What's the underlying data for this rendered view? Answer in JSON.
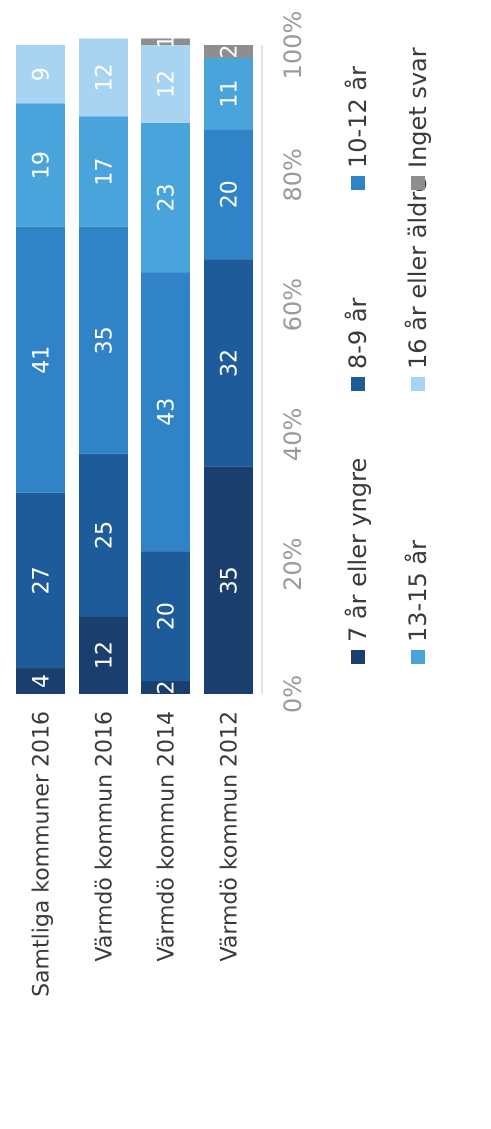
{
  "chart_data": {
    "type": "bar",
    "orientation": "horizontal-stacked-100",
    "title": "",
    "xlabel": "",
    "ylabel": "",
    "categories": [
      "Samtliga kommuner 2016",
      "Värmdö kommun 2016",
      "Värmdö kommun 2014",
      "Värmdö kommun 2012"
    ],
    "xlim": [
      0,
      100
    ],
    "x_ticks": [
      "0%",
      "20%",
      "40%",
      "60%",
      "80%",
      "100%"
    ],
    "series": [
      {
        "name": "7 år eller yngre",
        "color": "#1a3f6e",
        "values": [
          4,
          12,
          2,
          35
        ],
        "labels": [
          "4",
          "12",
          "2",
          "35"
        ]
      },
      {
        "name": "8-9 år",
        "color": "#1d5b9a",
        "values": [
          27,
          25,
          20,
          32
        ],
        "labels": [
          "27",
          "25",
          "20",
          "32"
        ]
      },
      {
        "name": "10-12 år",
        "color": "#2f83c6",
        "values": [
          41,
          35,
          43,
          20
        ],
        "labels": [
          "41",
          "35",
          "43",
          "20"
        ]
      },
      {
        "name": "13-15 år",
        "color": "#4aa4dc",
        "values": [
          19,
          17,
          23,
          11
        ],
        "labels": [
          "19",
          "17",
          "23",
          "11"
        ]
      },
      {
        "name": "16 år eller äldre",
        "color": "#a8d4f2",
        "values": [
          9,
          12,
          12,
          0
        ],
        "labels": [
          "9",
          "12",
          "12",
          ""
        ]
      },
      {
        "name": "Inget svar",
        "color": "#8e8e8e",
        "values": [
          0,
          0,
          1,
          2
        ],
        "labels": [
          "0",
          "",
          "1",
          "2"
        ]
      }
    ],
    "legend": {
      "position": "bottom",
      "columns": 3
    },
    "grid": false
  }
}
